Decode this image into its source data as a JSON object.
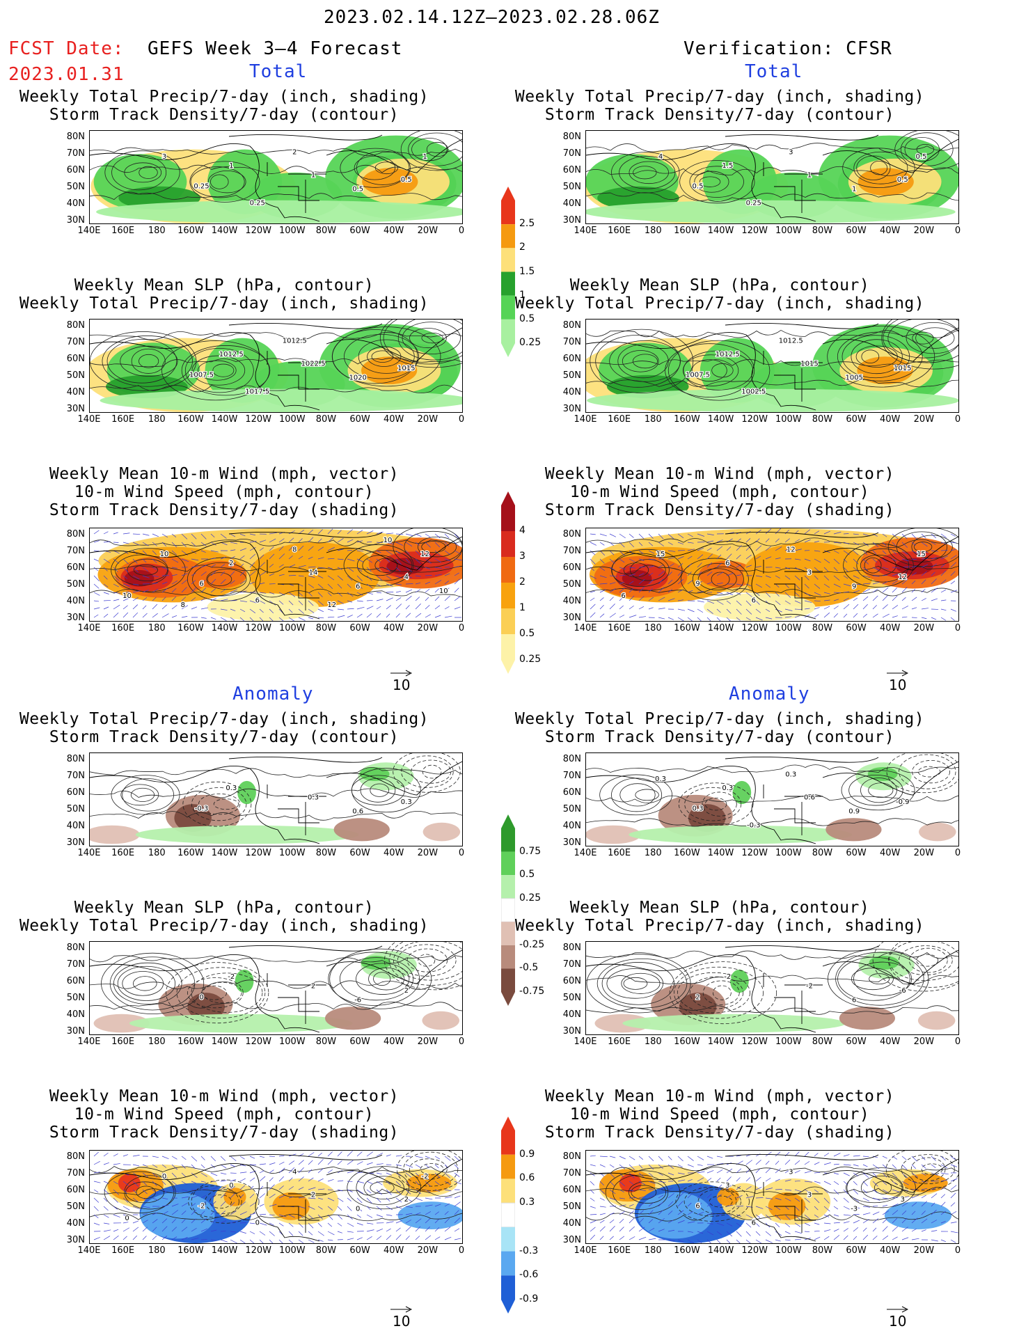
{
  "header": {
    "period": "2023.02.14.12Z–2023.02.28.06Z",
    "fcst_label": "FCST Date:",
    "fcst_date": "2023.01.31",
    "left_product": "GEFS Week 3–4 Forecast",
    "right_product": "Verification: CFSR"
  },
  "sections": {
    "total": "Total",
    "anomaly": "Anomaly"
  },
  "titles": {
    "precip_storm": [
      "Weekly Total Precip/7-day (inch, shading)",
      "Storm Track Density/7-day (contour)"
    ],
    "slp_precip": [
      "Weekly Mean SLP (hPa, contour)",
      "Weekly Total Precip/7-day (inch, shading)"
    ],
    "wind_storm": [
      "Weekly Mean 10-m Wind (mph, vector)",
      "10-m Wind Speed (mph, contour)",
      "Storm Track Density/7-day (shading)"
    ]
  },
  "axes": {
    "lat_labels": [
      "80N",
      "70N",
      "60N",
      "50N",
      "40N",
      "30N"
    ],
    "lon_labels": [
      "140E",
      "160E",
      "180",
      "160W",
      "140W",
      "120W",
      "100W",
      "80W",
      "60W",
      "40W",
      "20W",
      "0"
    ]
  },
  "vector_ref": "10",
  "colorbars": {
    "total_precip": {
      "labels": [
        "2.5",
        "2",
        "1.5",
        "1",
        "0.5",
        "0.25"
      ],
      "colors": [
        "#e8361b",
        "#f59a10",
        "#fde07a",
        "#27a12d",
        "#56d456",
        "#a8f0a0"
      ]
    },
    "total_storm": {
      "labels": [
        "4",
        "3",
        "2",
        "1",
        "0.5",
        "0.25"
      ],
      "colors": [
        "#a5101a",
        "#d92b1e",
        "#f06a12",
        "#f8a20e",
        "#fbcf55",
        "#fdf2a8"
      ]
    },
    "anom_precip": {
      "labels": [
        "0.75",
        "0.5",
        "0.25",
        "-0.25",
        "-0.5",
        "-0.75"
      ],
      "colors": [
        "#2e9a2c",
        "#5fd05a",
        "#b5f0ac",
        "#ffffff",
        "#e0c0b4",
        "#b88b7c",
        "#7a4b3e"
      ]
    },
    "anom_storm": {
      "labels": [
        "0.9",
        "0.6",
        "0.3",
        "-0.3",
        "-0.6",
        "-0.9"
      ],
      "colors": [
        "#e8361b",
        "#f59a10",
        "#fde07a",
        "#ffffff",
        "#a8e4f6",
        "#5aa8f0",
        "#1f5fd6"
      ]
    }
  },
  "panels": {
    "fc_tot_precip": {
      "labels": [
        "1",
        "0.25",
        "1",
        "0.5",
        "0.5",
        "0.25",
        "2",
        "3",
        "1"
      ]
    },
    "ob_tot_precip": {
      "labels": [
        "1.5",
        "0.5",
        "1",
        "1",
        "0.5",
        "0.25",
        "3",
        "4",
        "0.5"
      ]
    },
    "fc_tot_slp": {
      "labels": [
        "1012.5",
        "1007.5",
        "1022.5",
        "1020",
        "1015",
        "1017.5",
        "1012.5"
      ]
    },
    "ob_tot_slp": {
      "labels": [
        "1012.5",
        "1007.5",
        "1015",
        "1005",
        "1015",
        "1002.5",
        "1012.5"
      ]
    },
    "fc_tot_wind": {
      "labels": [
        "2",
        "6",
        "14",
        "6",
        "4",
        "6",
        "8",
        "10",
        "12",
        "10",
        "12",
        "10",
        "8",
        "10"
      ]
    },
    "ob_tot_wind": {
      "labels": [
        "6",
        "9",
        "3",
        "9",
        "12",
        "6",
        "12",
        "15",
        "15",
        "6"
      ]
    },
    "fc_ano_precip": {
      "labels": [
        "0.3",
        "-0.3",
        "0.3",
        "0.6",
        "0.3"
      ]
    },
    "ob_ano_precip": {
      "labels": [
        "0.3",
        "0.3",
        "0.6",
        "0.9",
        "-0.9",
        "-0.3",
        "0.3",
        "0.3"
      ]
    },
    "fc_ano_slp": {
      "labels": [
        "-2",
        "0",
        "2",
        "-6",
        "2"
      ]
    },
    "ob_ano_slp": {
      "labels": [
        "-2",
        "2",
        "-2",
        "6",
        "-6"
      ]
    },
    "fc_ano_wind": {
      "labels": [
        "0",
        "-2",
        "2",
        "0",
        "2",
        "0",
        "4",
        "0",
        "-2",
        "0"
      ]
    },
    "ob_ano_wind": {
      "labels": [
        "3",
        "6",
        "3",
        "-3",
        "3",
        "6",
        "3"
      ]
    }
  }
}
